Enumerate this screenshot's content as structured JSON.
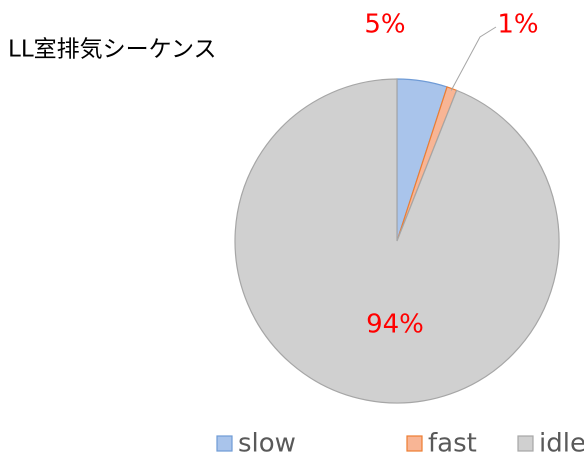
{
  "chart_data": {
    "type": "pie",
    "title": "LL室排気シーケンス",
    "categories": [
      "slow",
      "fast",
      "idle"
    ],
    "values": [
      5,
      1,
      94
    ],
    "value_labels": [
      "5%",
      "1%",
      "94%"
    ],
    "colors": [
      "#a9c4eb",
      "#f8b595",
      "#d0d0d0"
    ],
    "edge_colors": [
      "#6f9bd6",
      "#ed7d31",
      "#a6a6a6"
    ],
    "label_color": "#ff0000",
    "legend": "bottom"
  }
}
